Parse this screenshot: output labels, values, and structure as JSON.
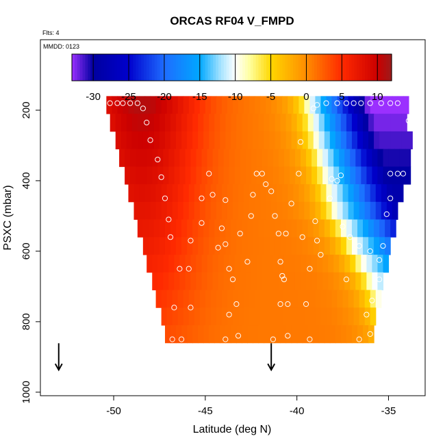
{
  "chart_data": {
    "type": "heatmap",
    "title": "ORCAS RF04 V_FMPD",
    "note_flts": "Flts: 4",
    "note_mmdd": "MMDD: 0123",
    "xlabel": "Latitude (deg N)",
    "ylabel": "PSXC (mbar)",
    "xlim": [
      -54.0,
      -33.0
    ],
    "ylim": [
      1010,
      0
    ],
    "xticks": [
      -50,
      -45,
      -40,
      -35
    ],
    "yticks": [
      200,
      400,
      600,
      800,
      1000
    ],
    "colorbar": {
      "range": [
        -33,
        12
      ],
      "ticks": [
        -30,
        -25,
        -20,
        -15,
        -10,
        -5,
        0,
        5,
        10
      ],
      "stops": [
        {
          "v": -33,
          "c": "#9b30ff"
        },
        {
          "v": -30,
          "c": "#0000a0"
        },
        {
          "v": -25,
          "c": "#0000cd"
        },
        {
          "v": -20,
          "c": "#1e6cff"
        },
        {
          "v": -15,
          "c": "#00a8ff"
        },
        {
          "v": -12,
          "c": "#a8e4ff"
        },
        {
          "v": -10,
          "c": "#ffffff"
        },
        {
          "v": -8,
          "c": "#ffffa0"
        },
        {
          "v": -5,
          "c": "#ffd700"
        },
        {
          "v": 0,
          "c": "#ff8c00"
        },
        {
          "v": 5,
          "c": "#ff2a00"
        },
        {
          "v": 10,
          "c": "#cc0000"
        },
        {
          "v": 12,
          "c": "#9b1b1b"
        }
      ]
    },
    "pressure_bins": [
      {
        "p": 180,
        "lat_min": -50.4,
        "lat_max": -34.2
      },
      {
        "p": 230,
        "lat_min": -50.2,
        "lat_max": -34.1
      },
      {
        "p": 280,
        "lat_min": -49.9,
        "lat_max": -34.0
      },
      {
        "p": 330,
        "lat_min": -49.7,
        "lat_max": -33.9
      },
      {
        "p": 380,
        "lat_min": -49.4,
        "lat_max": -34.0
      },
      {
        "p": 430,
        "lat_min": -49.2,
        "lat_max": -34.5
      },
      {
        "p": 480,
        "lat_min": -48.9,
        "lat_max": -34.7
      },
      {
        "p": 530,
        "lat_min": -48.7,
        "lat_max": -34.9
      },
      {
        "p": 580,
        "lat_min": -48.4,
        "lat_max": -35.0
      },
      {
        "p": 630,
        "lat_min": -48.2,
        "lat_max": -35.2
      },
      {
        "p": 680,
        "lat_min": -47.9,
        "lat_max": -35.4
      },
      {
        "p": 730,
        "lat_min": -47.7,
        "lat_max": -35.6
      },
      {
        "p": 780,
        "lat_min": -47.4,
        "lat_max": -35.8
      },
      {
        "p": 830,
        "lat_min": -47.2,
        "lat_max": -35.9
      }
    ],
    "jet_axis": [
      {
        "p": 180,
        "lat": -39.4
      },
      {
        "p": 280,
        "lat": -39.0
      },
      {
        "p": 380,
        "lat": -38.5
      },
      {
        "p": 480,
        "lat": -38.0
      },
      {
        "p": 580,
        "lat": -37.0
      },
      {
        "p": 680,
        "lat": -36.0
      },
      {
        "p": 830,
        "lat": -35.0
      }
    ],
    "points": [
      {
        "lat": -50.2,
        "p": 180
      },
      {
        "lat": -49.8,
        "p": 180
      },
      {
        "lat": -49.5,
        "p": 180
      },
      {
        "lat": -49.1,
        "p": 180
      },
      {
        "lat": -48.7,
        "p": 180
      },
      {
        "lat": -48.4,
        "p": 195
      },
      {
        "lat": -48.2,
        "p": 235
      },
      {
        "lat": -48.0,
        "p": 285
      },
      {
        "lat": -47.6,
        "p": 340
      },
      {
        "lat": -47.4,
        "p": 390
      },
      {
        "lat": -47.2,
        "p": 450
      },
      {
        "lat": -47.0,
        "p": 510
      },
      {
        "lat": -46.9,
        "p": 560
      },
      {
        "lat": -46.4,
        "p": 650
      },
      {
        "lat": -46.7,
        "p": 760
      },
      {
        "lat": -46.8,
        "p": 850
      },
      {
        "lat": -46.3,
        "p": 850
      },
      {
        "lat": -45.8,
        "p": 760
      },
      {
        "lat": -45.9,
        "p": 650
      },
      {
        "lat": -45.8,
        "p": 570
      },
      {
        "lat": -45.2,
        "p": 520
      },
      {
        "lat": -45.2,
        "p": 450
      },
      {
        "lat": -44.8,
        "p": 380
      },
      {
        "lat": -44.6,
        "p": 440
      },
      {
        "lat": -43.9,
        "p": 455
      },
      {
        "lat": -44.3,
        "p": 590
      },
      {
        "lat": -44.1,
        "p": 535
      },
      {
        "lat": -43.7,
        "p": 650
      },
      {
        "lat": -43.9,
        "p": 580
      },
      {
        "lat": -43.5,
        "p": 680
      },
      {
        "lat": -43.1,
        "p": 550
      },
      {
        "lat": -43.2,
        "p": 840
      },
      {
        "lat": -43.3,
        "p": 750
      },
      {
        "lat": -43.7,
        "p": 780
      },
      {
        "lat": -43.9,
        "p": 850
      },
      {
        "lat": -42.7,
        "p": 630
      },
      {
        "lat": -42.5,
        "p": 500
      },
      {
        "lat": -42.4,
        "p": 440
      },
      {
        "lat": -42.2,
        "p": 380
      },
      {
        "lat": -41.9,
        "p": 380
      },
      {
        "lat": -41.7,
        "p": 410
      },
      {
        "lat": -41.4,
        "p": 430
      },
      {
        "lat": -41.2,
        "p": 500
      },
      {
        "lat": -41.0,
        "p": 550
      },
      {
        "lat": -40.9,
        "p": 630
      },
      {
        "lat": -40.8,
        "p": 670
      },
      {
        "lat": -40.7,
        "p": 680
      },
      {
        "lat": -40.9,
        "p": 750
      },
      {
        "lat": -40.5,
        "p": 750
      },
      {
        "lat": -40.5,
        "p": 840
      },
      {
        "lat": -41.3,
        "p": 850
      },
      {
        "lat": -40.6,
        "p": 550
      },
      {
        "lat": -40.3,
        "p": 465
      },
      {
        "lat": -39.9,
        "p": 380
      },
      {
        "lat": -39.8,
        "p": 290
      },
      {
        "lat": -39.7,
        "p": 560
      },
      {
        "lat": -39.3,
        "p": 650
      },
      {
        "lat": -39.5,
        "p": 750
      },
      {
        "lat": -39.3,
        "p": 850
      },
      {
        "lat": -38.9,
        "p": 570
      },
      {
        "lat": -39.0,
        "p": 515
      },
      {
        "lat": -39.1,
        "p": 195
      },
      {
        "lat": -38.9,
        "p": 185
      },
      {
        "lat": -38.4,
        "p": 180
      },
      {
        "lat": -38.1,
        "p": 395
      },
      {
        "lat": -38.2,
        "p": 450
      },
      {
        "lat": -37.8,
        "p": 400
      },
      {
        "lat": -37.6,
        "p": 385
      },
      {
        "lat": -37.8,
        "p": 180
      },
      {
        "lat": -37.3,
        "p": 180
      },
      {
        "lat": -36.9,
        "p": 180
      },
      {
        "lat": -36.5,
        "p": 180
      },
      {
        "lat": -36.0,
        "p": 180
      },
      {
        "lat": -35.4,
        "p": 180
      },
      {
        "lat": -34.9,
        "p": 180
      },
      {
        "lat": -34.5,
        "p": 180
      },
      {
        "lat": -37.5,
        "p": 530
      },
      {
        "lat": -37.1,
        "p": 560
      },
      {
        "lat": -36.6,
        "p": 585
      },
      {
        "lat": -36.0,
        "p": 600
      },
      {
        "lat": -35.5,
        "p": 625
      },
      {
        "lat": -35.5,
        "p": 680
      },
      {
        "lat": -35.9,
        "p": 740
      },
      {
        "lat": -36.2,
        "p": 780
      },
      {
        "lat": -36.0,
        "p": 835
      },
      {
        "lat": -36.6,
        "p": 850
      },
      {
        "lat": -35.3,
        "p": 585
      },
      {
        "lat": -35.1,
        "p": 495
      },
      {
        "lat": -34.9,
        "p": 450
      },
      {
        "lat": -34.9,
        "p": 380
      },
      {
        "lat": -34.5,
        "p": 380
      },
      {
        "lat": -34.2,
        "p": 380
      },
      {
        "lat": -33.9,
        "p": 230
      },
      {
        "lat": -37.3,
        "p": 680
      },
      {
        "lat": -38.7,
        "p": 610
      }
    ],
    "arrows": [
      {
        "lat": -53.0,
        "p": 900
      },
      {
        "lat": -41.4,
        "p": 900
      }
    ]
  }
}
